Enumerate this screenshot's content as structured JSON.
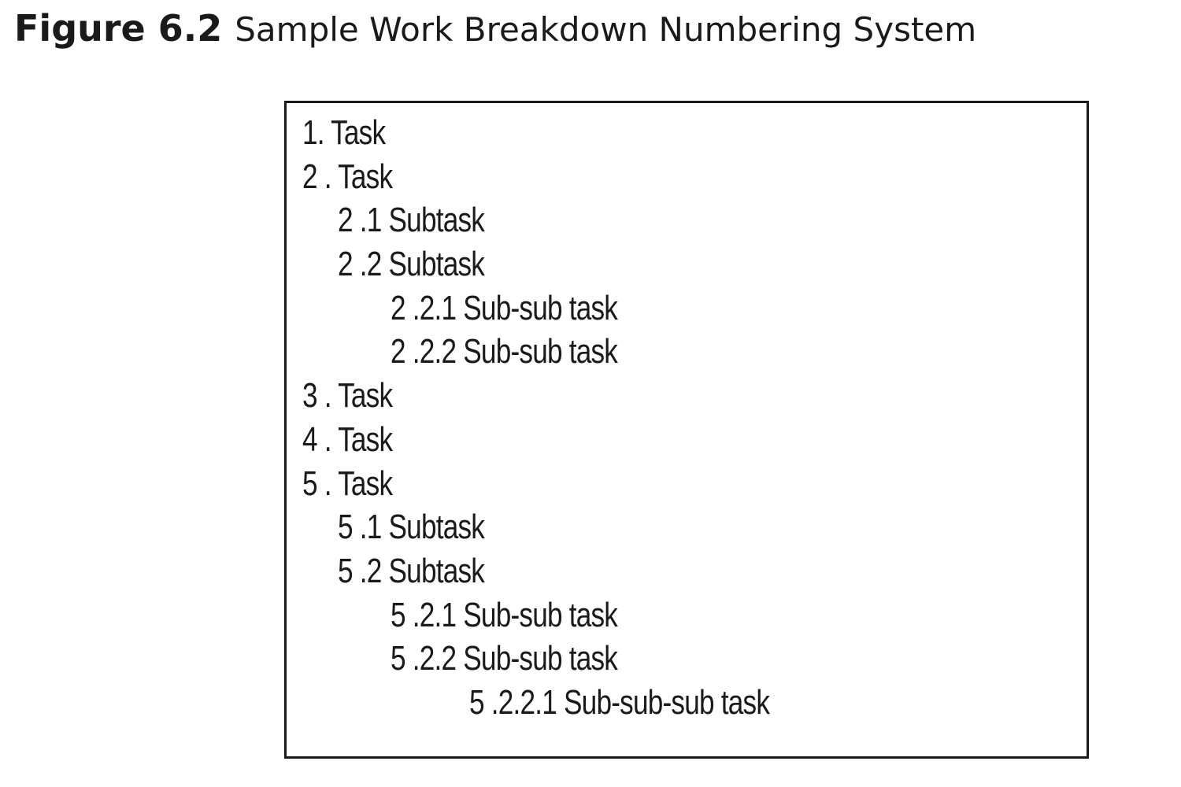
{
  "caption": {
    "label": "Figure 6.2",
    "title": "Sample Work Breakdown Numbering System"
  },
  "wbs": {
    "items": [
      {
        "text": "1. Task",
        "level": 1
      },
      {
        "text": "2 . Task",
        "level": 1
      },
      {
        "text": "2  .1 Subtask",
        "level": 2
      },
      {
        "text": "2  .2 Subtask",
        "level": 2
      },
      {
        "text": "2 .2.1 Sub-sub task",
        "level": 3
      },
      {
        "text": "2 .2.2 Sub-sub task",
        "level": 3
      },
      {
        "text": "3 . Task",
        "level": 1
      },
      {
        "text": "4 . Task",
        "level": 1
      },
      {
        "text": "5 . Task",
        "level": 1
      },
      {
        "text": "5 .1 Subtask",
        "level": 2
      },
      {
        "text": "5 .2 Subtask",
        "level": 2
      },
      {
        "text": "5 .2.1 Sub-sub task",
        "level": 3
      },
      {
        "text": "5 .2.2 Sub-sub task",
        "level": 3
      },
      {
        "text": "5 .2.2.1 Sub-sub-sub task",
        "level": 4
      }
    ]
  }
}
